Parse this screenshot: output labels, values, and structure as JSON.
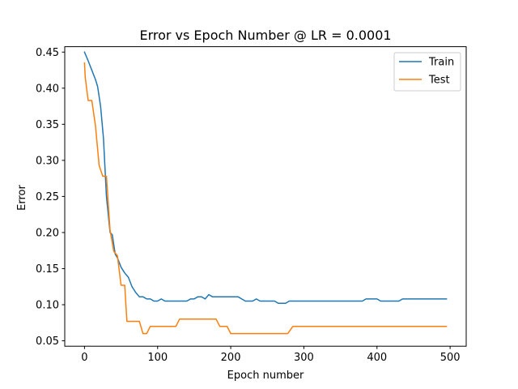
{
  "chart_data": {
    "type": "line",
    "title": "Error vs Epoch Number @ LR = 0.0001",
    "xlabel": "Epoch number",
    "ylabel": "Error",
    "xlim": [
      -27,
      522
    ],
    "ylim": [
      0.0425,
      0.4575
    ],
    "xticks": [
      0,
      100,
      200,
      300,
      400,
      500
    ],
    "yticks": [
      0.05,
      0.1,
      0.15,
      0.2,
      0.25,
      0.3,
      0.35,
      0.4,
      0.45
    ],
    "ytick_labels": [
      "0.05",
      "0.10",
      "0.15",
      "0.20",
      "0.25",
      "0.30",
      "0.35",
      "0.40",
      "0.45"
    ],
    "grid": false,
    "legend_position": "top-right",
    "series": [
      {
        "name": "Train",
        "color": "#1f77b4",
        "points": [
          [
            0,
            0.45
          ],
          [
            5,
            0.438
          ],
          [
            10,
            0.425
          ],
          [
            15,
            0.412
          ],
          [
            18,
            0.402
          ],
          [
            22,
            0.375
          ],
          [
            26,
            0.33
          ],
          [
            30,
            0.25
          ],
          [
            35,
            0.2
          ],
          [
            38,
            0.197
          ],
          [
            42,
            0.17
          ],
          [
            45,
            0.165
          ],
          [
            50,
            0.152
          ],
          [
            55,
            0.144
          ],
          [
            60,
            0.138
          ],
          [
            65,
            0.125
          ],
          [
            70,
            0.117
          ],
          [
            75,
            0.111
          ],
          [
            80,
            0.111
          ],
          [
            85,
            0.108
          ],
          [
            90,
            0.108
          ],
          [
            95,
            0.105
          ],
          [
            100,
            0.105
          ],
          [
            105,
            0.108
          ],
          [
            110,
            0.105
          ],
          [
            120,
            0.105
          ],
          [
            130,
            0.105
          ],
          [
            140,
            0.105
          ],
          [
            145,
            0.108
          ],
          [
            150,
            0.108
          ],
          [
            155,
            0.111
          ],
          [
            160,
            0.111
          ],
          [
            165,
            0.108
          ],
          [
            170,
            0.114
          ],
          [
            175,
            0.111
          ],
          [
            180,
            0.111
          ],
          [
            190,
            0.111
          ],
          [
            200,
            0.111
          ],
          [
            210,
            0.111
          ],
          [
            215,
            0.108
          ],
          [
            220,
            0.105
          ],
          [
            230,
            0.105
          ],
          [
            235,
            0.108
          ],
          [
            240,
            0.105
          ],
          [
            250,
            0.105
          ],
          [
            260,
            0.105
          ],
          [
            265,
            0.102
          ],
          [
            275,
            0.102
          ],
          [
            280,
            0.105
          ],
          [
            290,
            0.105
          ],
          [
            300,
            0.105
          ],
          [
            320,
            0.105
          ],
          [
            340,
            0.105
          ],
          [
            360,
            0.105
          ],
          [
            380,
            0.105
          ],
          [
            385,
            0.108
          ],
          [
            400,
            0.108
          ],
          [
            405,
            0.105
          ],
          [
            420,
            0.105
          ],
          [
            430,
            0.105
          ],
          [
            435,
            0.108
          ],
          [
            450,
            0.108
          ],
          [
            470,
            0.108
          ],
          [
            495,
            0.108
          ]
        ]
      },
      {
        "name": "Test",
        "color": "#ff7f0e",
        "points": [
          [
            0,
            0.435
          ],
          [
            1,
            0.415
          ],
          [
            5,
            0.383
          ],
          [
            10,
            0.383
          ],
          [
            15,
            0.348
          ],
          [
            20,
            0.293
          ],
          [
            25,
            0.278
          ],
          [
            30,
            0.278
          ],
          [
            35,
            0.203
          ],
          [
            40,
            0.174
          ],
          [
            45,
            0.168
          ],
          [
            50,
            0.127
          ],
          [
            55,
            0.127
          ],
          [
            58,
            0.077
          ],
          [
            60,
            0.077
          ],
          [
            75,
            0.077
          ],
          [
            80,
            0.06
          ],
          [
            85,
            0.06
          ],
          [
            90,
            0.07
          ],
          [
            100,
            0.07
          ],
          [
            125,
            0.07
          ],
          [
            130,
            0.08
          ],
          [
            140,
            0.08
          ],
          [
            150,
            0.08
          ],
          [
            160,
            0.08
          ],
          [
            170,
            0.08
          ],
          [
            180,
            0.08
          ],
          [
            185,
            0.07
          ],
          [
            195,
            0.07
          ],
          [
            200,
            0.06
          ],
          [
            220,
            0.06
          ],
          [
            240,
            0.06
          ],
          [
            260,
            0.06
          ],
          [
            278,
            0.06
          ],
          [
            285,
            0.07
          ],
          [
            300,
            0.07
          ],
          [
            350,
            0.07
          ],
          [
            400,
            0.07
          ],
          [
            450,
            0.07
          ],
          [
            495,
            0.07
          ]
        ]
      }
    ]
  }
}
